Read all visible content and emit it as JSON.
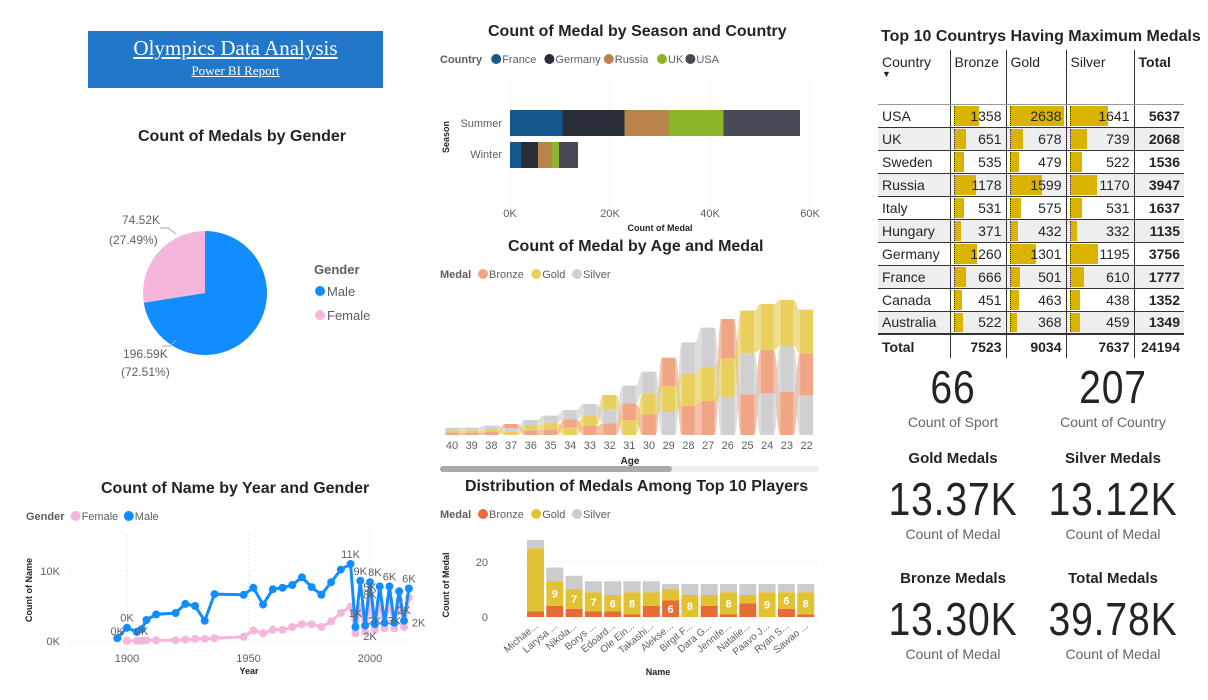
{
  "header": {
    "title": "Olympics Data Analysis",
    "subtitle": "Power BI Report",
    "color": "#2277c8"
  },
  "chart_data": [
    {
      "id": "gender-pie",
      "type": "pie",
      "title": "Count of Medals by Gender",
      "legend_title": "Gender",
      "legend_placement": "right",
      "slices": [
        {
          "name": "Male",
          "value": 196590,
          "label": "196.59K",
          "pct": "(72.51%)",
          "color": "#118DFF"
        },
        {
          "name": "Female",
          "value": 74520,
          "label": "74.52K",
          "pct": "(27.49%)",
          "color": "#F5B6DB"
        }
      ]
    },
    {
      "id": "season-bar",
      "type": "bar",
      "orientation": "horizontal",
      "stacked": true,
      "title": "Count of Medal by Season and Country",
      "legend_title": "Country",
      "legend_placement": "top-left",
      "xlabel": "Count of Medal",
      "ylabel": "Season",
      "xlim": [
        0,
        60000
      ],
      "xticks": [
        "0K",
        "20K",
        "40K",
        "60K"
      ],
      "categories": [
        "Summer",
        "Winter"
      ],
      "series": [
        {
          "name": "France",
          "color": "#15598C",
          "values": [
            10500,
            2200
          ]
        },
        {
          "name": "Germany",
          "color": "#292D37",
          "values": [
            12400,
            3400
          ]
        },
        {
          "name": "Russia",
          "color": "#B9844B",
          "values": [
            8800,
            2800
          ]
        },
        {
          "name": "UK",
          "color": "#8CB52A",
          "values": [
            11000,
            1400
          ]
        },
        {
          "name": "USA",
          "color": "#474A55",
          "values": [
            15300,
            3800
          ]
        }
      ]
    },
    {
      "id": "age-ribbon",
      "type": "area",
      "subtype": "ribbon",
      "title": "Count of Medal by Age and Medal",
      "legend_title": "Medal",
      "legend_placement": "top-left",
      "xlabel": "Age",
      "categories": [
        "40",
        "39",
        "38",
        "37",
        "36",
        "35",
        "34",
        "33",
        "32",
        "31",
        "30",
        "29",
        "28",
        "27",
        "26",
        "25",
        "24",
        "23",
        "22"
      ],
      "series": [
        {
          "name": "Bronze",
          "color": "#F0A585",
          "values": [
            7,
            7,
            9,
            12,
            13,
            17,
            25,
            27,
            35,
            50,
            62,
            85,
            88,
            102,
            118,
            122,
            130,
            130,
            127
          ]
        },
        {
          "name": "Gold",
          "color": "#E8CF5E",
          "values": [
            7,
            7,
            9,
            10,
            14,
            20,
            22,
            32,
            43,
            45,
            62,
            78,
            95,
            102,
            117,
            128,
            138,
            138,
            131
          ]
        },
        {
          "name": "Silver",
          "color": "#D0D0D0",
          "values": [
            8,
            8,
            10,
            11,
            18,
            21,
            28,
            34,
            42,
            53,
            66,
            69,
            95,
            118,
            113,
            123,
            125,
            137,
            118
          ]
        }
      ]
    },
    {
      "id": "players-bar",
      "type": "bar",
      "stacked": true,
      "title": "Distribution of Medals Among Top 10 Players",
      "legend_title": "Medal",
      "legend_placement": "top-left",
      "xlabel": "Name",
      "ylabel": "Count of Medal",
      "ylim": [
        0,
        30
      ],
      "yticks": [
        "0",
        "20"
      ],
      "categories": [
        "Michae...",
        "Larysa ...",
        "Nikola...",
        "Borys ...",
        "Edoard...",
        "Ole Ein...",
        "Takashi...",
        "Alekse...",
        "Birgit F...",
        "Dara G...",
        "Jennife...",
        "Natalie...",
        "Paavo J...",
        "Ryan S...",
        "Sawao ..."
      ],
      "series": [
        {
          "name": "Bronze",
          "color": "#E66C37",
          "values": [
            2,
            4,
            3,
            2,
            2,
            1,
            4,
            6,
            0,
            4,
            1,
            5,
            0,
            3,
            1
          ]
        },
        {
          "name": "Gold",
          "color": "#E1C233",
          "values": [
            23,
            9,
            7,
            7,
            6,
            8,
            5,
            4,
            8,
            4,
            8,
            3,
            9,
            6,
            8
          ]
        },
        {
          "name": "Silver",
          "color": "#CCCCCC",
          "values": [
            3,
            5,
            5,
            4,
            5,
            4,
            4,
            2,
            4,
            4,
            3,
            4,
            3,
            3,
            3
          ]
        }
      ],
      "data_labels": [
        {
          "i": 1,
          "series": "Gold",
          "text": "9"
        },
        {
          "i": 2,
          "series": "Gold",
          "text": "7"
        },
        {
          "i": 3,
          "series": "Gold",
          "text": "7"
        },
        {
          "i": 4,
          "series": "Gold",
          "text": "6"
        },
        {
          "i": 5,
          "series": "Gold",
          "text": "8"
        },
        {
          "i": 7,
          "series": "Bronze",
          "text": "6"
        },
        {
          "i": 8,
          "series": "Gold",
          "text": "8"
        },
        {
          "i": 10,
          "series": "Gold",
          "text": "8"
        },
        {
          "i": 12,
          "series": "Gold",
          "text": "9"
        },
        {
          "i": 13,
          "series": "Gold",
          "text": "6"
        },
        {
          "i": 14,
          "series": "Gold",
          "text": "8"
        }
      ]
    },
    {
      "id": "year-line",
      "type": "line",
      "title": "Count of Name by Year and Gender",
      "legend_title": "Gender",
      "legend_placement": "top-left",
      "xlabel": "Year",
      "ylabel": "Count of Name",
      "xticks": [
        "1900",
        "1950",
        "2000"
      ],
      "yticks": [
        "0K",
        "10K"
      ],
      "xlim": [
        1880,
        2025
      ],
      "ylim": [
        0,
        14000
      ],
      "series": [
        {
          "name": "Female",
          "color": "#F5B6DB",
          "x": [
            1900,
            1904,
            1906,
            1908,
            1912,
            1920,
            1924,
            1928,
            1932,
            1936,
            1948,
            1952,
            1956,
            1960,
            1964,
            1968,
            1972,
            1976,
            1980,
            1984,
            1988,
            1992,
            1994,
            1996,
            1998,
            2000,
            2002,
            2004,
            2006,
            2008,
            2010,
            2012,
            2014,
            2016
          ],
          "y": [
            30,
            10,
            20,
            100,
            100,
            100,
            200,
            300,
            300,
            400,
            600,
            1500,
            1100,
            1600,
            1600,
            2000,
            2400,
            2400,
            2000,
            2800,
            4000,
            4900,
            1100,
            4800,
            1300,
            5400,
            1600,
            5500,
            1800,
            5800,
            1800,
            5800,
            2000,
            6200
          ]
        },
        {
          "name": "Male",
          "color": "#118DFF",
          "x": [
            1896,
            1900,
            1904,
            1906,
            1908,
            1912,
            1920,
            1924,
            1928,
            1932,
            1936,
            1948,
            1952,
            1956,
            1960,
            1964,
            1968,
            1972,
            1976,
            1980,
            1984,
            1988,
            1992,
            1994,
            1996,
            1998,
            2000,
            2002,
            2004,
            2006,
            2008,
            2010,
            2012,
            2014,
            2016
          ],
          "y": [
            400,
            1900,
            1300,
            1700,
            3000,
            3800,
            4000,
            5300,
            5000,
            2900,
            6700,
            6600,
            7600,
            5200,
            7400,
            7600,
            8000,
            9100,
            7700,
            6600,
            8400,
            10200,
            11000,
            2000,
            8600,
            2200,
            8400,
            2400,
            7800,
            2600,
            7800,
            2600,
            7100,
            2900,
            7500
          ]
        }
      ],
      "annotations": [
        {
          "x": 1896,
          "y": 0,
          "text": "0K"
        },
        {
          "x": 1900,
          "y": 1900,
          "text": "0K"
        },
        {
          "x": 1906,
          "y": 0,
          "text": "0K"
        },
        {
          "x": 1992,
          "y": 11000,
          "text": "11K"
        },
        {
          "x": 1996,
          "y": 8600,
          "text": "9K"
        },
        {
          "x": 2002,
          "y": 8400,
          "text": "8K"
        },
        {
          "x": 2000,
          "y": 6300,
          "text": "5K"
        },
        {
          "x": 2000,
          "y": 5200,
          "text": "8K"
        },
        {
          "x": 2008,
          "y": 7800,
          "text": "6K"
        },
        {
          "x": 2016,
          "y": 7500,
          "text": "6K"
        },
        {
          "x": 1994,
          "y": 2600,
          "text": "1K"
        },
        {
          "x": 2002,
          "y": 1500,
          "text": "2K"
        },
        {
          "x": 2000,
          "y": -700,
          "text": "2K"
        },
        {
          "x": 2010,
          "y": 1500,
          "text": "3K"
        },
        {
          "x": 2014,
          "y": 3000,
          "text": "2K"
        },
        {
          "x": 2020,
          "y": 1200,
          "text": "2K"
        }
      ]
    }
  ],
  "table": {
    "title": "Top 10 Countrys Having Maximum Medals",
    "bar_color": "#D9B300",
    "columns": [
      "Country",
      "Bronze",
      "Gold",
      "Silver",
      "Total"
    ],
    "rows": [
      [
        "USA",
        "1358",
        "2638",
        "1641",
        "5637"
      ],
      [
        "UK",
        "651",
        "678",
        "739",
        "2068"
      ],
      [
        "Sweden",
        "535",
        "479",
        "522",
        "1536"
      ],
      [
        "Russia",
        "1178",
        "1599",
        "1170",
        "3947"
      ],
      [
        "Italy",
        "531",
        "575",
        "531",
        "1637"
      ],
      [
        "Hungary",
        "371",
        "432",
        "332",
        "1135"
      ],
      [
        "Germany",
        "1260",
        "1301",
        "1195",
        "3756"
      ],
      [
        "France",
        "666",
        "501",
        "610",
        "1777"
      ],
      [
        "Canada",
        "451",
        "463",
        "438",
        "1352"
      ],
      [
        "Australia",
        "522",
        "368",
        "459",
        "1349"
      ]
    ],
    "total": [
      "Total",
      "7523",
      "9034",
      "7637",
      "24194"
    ]
  },
  "kpis": [
    {
      "title": "",
      "value": "66",
      "label": "Count of Sport"
    },
    {
      "title": "",
      "value": "207",
      "label": "Count of Country"
    },
    {
      "title": "Gold Medals",
      "value": "13.37K",
      "label": "Count of Medal"
    },
    {
      "title": "Silver Medals",
      "value": "13.12K",
      "label": "Count of Medal"
    },
    {
      "title": "Bronze Medals",
      "value": "13.30K",
      "label": "Count of Medal"
    },
    {
      "title": "Total Medals",
      "value": "39.78K",
      "label": "Count of Medal"
    }
  ]
}
